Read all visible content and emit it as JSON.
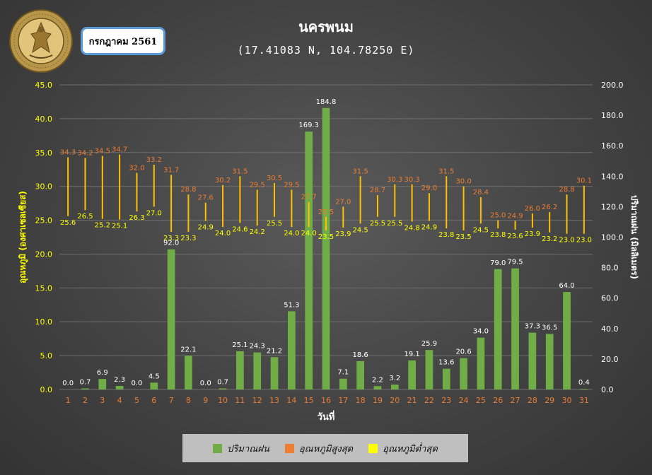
{
  "header": {
    "month_badge": "กรกฎาคม 2561",
    "logo_text": "METEOROLOGICAL DEPARTMENT"
  },
  "chart_data": {
    "type": "bar+range",
    "title": "นครพนม",
    "subtitle": "(17.41083 N, 104.78250 E)",
    "xlabel": "วันที่",
    "ylabel_left": "อุณหภูมิ (องศาเซลเซียส)",
    "ylabel_right": "ปริมาณฝน (มิลลิเมตร)",
    "ylim_left": [
      0,
      45
    ],
    "ylim_right": [
      0,
      200
    ],
    "left_ticks": [
      "0.0",
      "5.0",
      "10.0",
      "15.0",
      "20.0",
      "25.0",
      "30.0",
      "35.0",
      "40.0",
      "45.0"
    ],
    "right_ticks": [
      "0.0",
      "20.0",
      "40.0",
      "60.0",
      "80.0",
      "100.0",
      "120.0",
      "140.0",
      "160.0",
      "180.0",
      "200.0"
    ],
    "grid": true,
    "legend_position": "bottom",
    "categories": [
      "1",
      "2",
      "3",
      "4",
      "5",
      "6",
      "7",
      "8",
      "9",
      "10",
      "11",
      "12",
      "13",
      "14",
      "15",
      "16",
      "17",
      "18",
      "19",
      "20",
      "21",
      "22",
      "23",
      "24",
      "25",
      "26",
      "27",
      "28",
      "29",
      "30",
      "31"
    ],
    "series": [
      {
        "name": "ปริมาณฝน",
        "axis": "right",
        "color": "#70ad47",
        "values": [
          0.0,
          0.7,
          6.9,
          2.3,
          0.0,
          4.5,
          92.0,
          22.1,
          0.0,
          0.7,
          25.1,
          24.3,
          21.2,
          51.3,
          169.3,
          184.8,
          7.1,
          18.6,
          2.2,
          3.2,
          19.1,
          25.9,
          13.6,
          20.6,
          34.0,
          79.0,
          79.5,
          37.3,
          36.5,
          64.0,
          0.4
        ],
        "labels": [
          "0.0",
          "0.7",
          "6.9",
          "2.3",
          "0.0",
          "4.5",
          "92.0",
          "22.1",
          "0.0",
          "0.7",
          "25.1",
          "24.3",
          "21.2",
          "51.3",
          "169.3",
          "184.8",
          "7.1",
          "18.6",
          "2.2",
          "3.2",
          "19.1",
          "25.9",
          "13.6",
          "20.6",
          "34.0",
          "79.0",
          "79.5",
          "37.3",
          "36.5",
          "64.0",
          "0.4"
        ]
      },
      {
        "name": "อุณหภูมิสูงสุด",
        "axis": "left",
        "color": "#ed7d31",
        "values": [
          34.3,
          34.2,
          34.5,
          34.7,
          32.0,
          33.2,
          31.7,
          28.8,
          27.6,
          30.2,
          31.5,
          29.5,
          30.5,
          29.5,
          27.7,
          25.5,
          27.0,
          31.5,
          28.7,
          30.3,
          30.3,
          29.0,
          31.5,
          30.0,
          28.4,
          25.0,
          24.9,
          26.0,
          26.2,
          28.8,
          30.1
        ]
      },
      {
        "name": "อุณหภูมิต่ำสุด",
        "axis": "left",
        "color": "#ffff00",
        "values": [
          25.6,
          26.5,
          25.2,
          25.1,
          26.3,
          27.0,
          23.3,
          23.3,
          24.9,
          24.0,
          24.6,
          24.2,
          25.5,
          24.0,
          24.0,
          23.5,
          23.9,
          24.5,
          25.5,
          25.5,
          24.8,
          24.9,
          23.8,
          23.5,
          24.5,
          23.8,
          23.6,
          23.9,
          23.2,
          23.0,
          23.0
        ]
      }
    ]
  }
}
